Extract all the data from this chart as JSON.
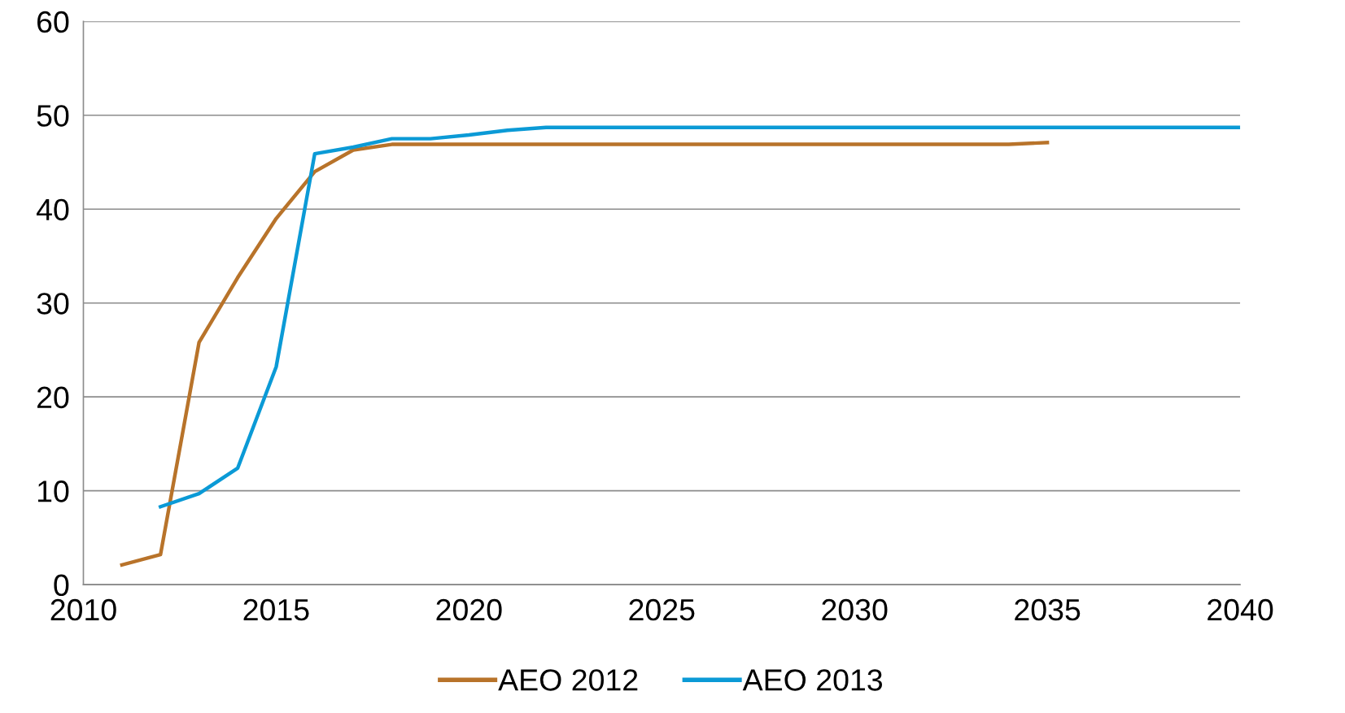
{
  "chart_data": {
    "type": "line",
    "xlim": [
      2010,
      2040
    ],
    "xticks": [
      2010,
      2015,
      2020,
      2025,
      2030,
      2035,
      2040
    ],
    "ylim": [
      0,
      60
    ],
    "yticks": [
      0,
      10,
      20,
      30,
      40,
      50,
      60
    ],
    "grid": "y",
    "legend": "bottom",
    "marker": "none",
    "line_style": "solid",
    "series": [
      {
        "name": "AEO 2012",
        "color": "#b8732a",
        "x": [
          2011,
          2012,
          2013,
          2014,
          2015,
          2016,
          2017,
          2018,
          2019,
          2020,
          2021,
          2022,
          2023,
          2024,
          2025,
          2026,
          2027,
          2028,
          2029,
          2030,
          2031,
          2032,
          2033,
          2034,
          2035
        ],
        "values": [
          2.1,
          3.2,
          25.8,
          32.7,
          39.0,
          44.0,
          46.3,
          46.9,
          46.9,
          46.9,
          46.9,
          46.9,
          46.9,
          46.9,
          46.9,
          46.9,
          46.9,
          46.9,
          46.9,
          46.9,
          46.9,
          46.9,
          46.9,
          46.9,
          47.1
        ]
      },
      {
        "name": "AEO 2013",
        "color": "#0b9ad6",
        "x": [
          2012,
          2013,
          2014,
          2015,
          2016,
          2017,
          2018,
          2019,
          2020,
          2021,
          2022,
          2023,
          2024,
          2025,
          2026,
          2027,
          2028,
          2029,
          2030,
          2031,
          2032,
          2033,
          2034,
          2035,
          2036,
          2037,
          2038,
          2039,
          2040
        ],
        "values": [
          8.3,
          9.7,
          12.4,
          23.2,
          45.9,
          46.6,
          47.5,
          47.5,
          47.9,
          48.4,
          48.7,
          48.7,
          48.7,
          48.7,
          48.7,
          48.7,
          48.7,
          48.7,
          48.7,
          48.7,
          48.7,
          48.7,
          48.7,
          48.7,
          48.7,
          48.7,
          48.7,
          48.7,
          48.7
        ]
      }
    ]
  }
}
